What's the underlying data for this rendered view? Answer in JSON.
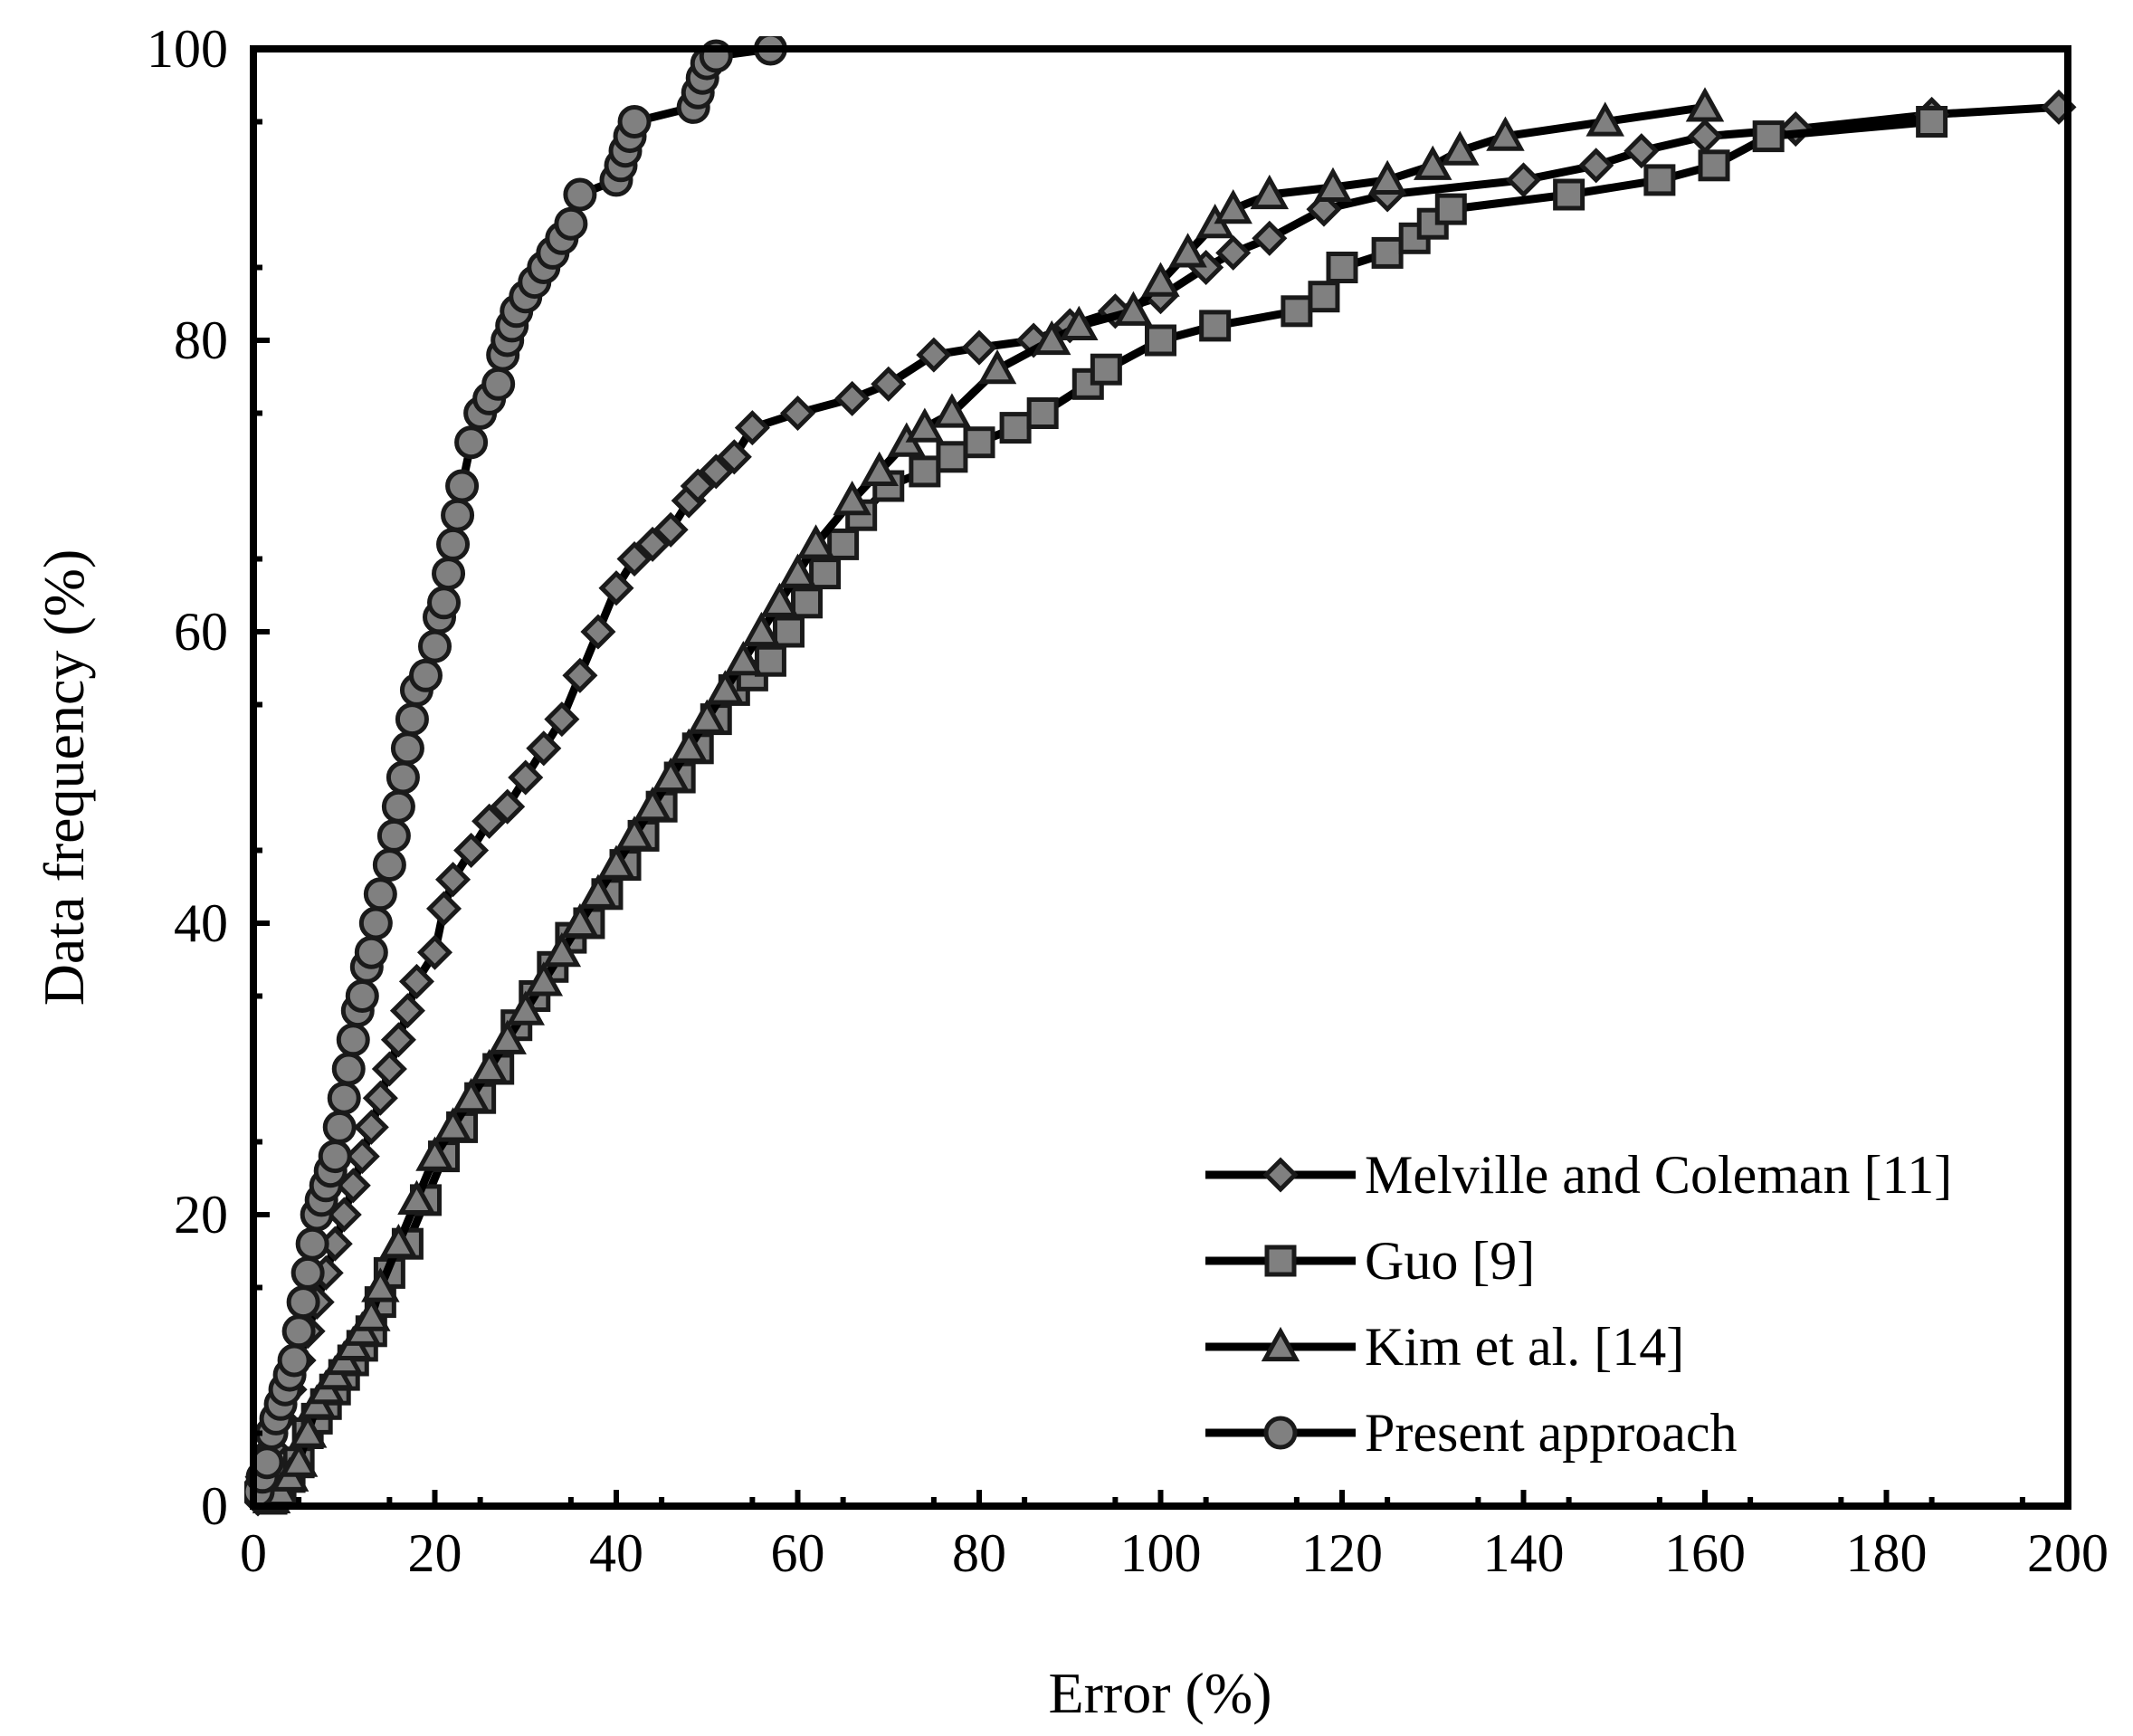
{
  "chart_data": {
    "type": "line",
    "title": "",
    "xlabel": "Error (%)",
    "ylabel": "Data frequency (%)",
    "xlim": [
      0,
      200
    ],
    "ylim": [
      0,
      100
    ],
    "xticks": [
      0,
      20,
      40,
      60,
      80,
      100,
      120,
      140,
      160,
      180,
      200
    ],
    "yticks": [
      0,
      20,
      40,
      60,
      80,
      100
    ],
    "grid": false,
    "legend_position": "bottom-right",
    "colors": {
      "line": "#000000",
      "marker_fill": "#808080",
      "marker_stroke": "#1a1a1a"
    },
    "series": [
      {
        "name": "Melville and Coleman [11]",
        "marker": "diamond",
        "x": [
          0.5,
          1,
          2,
          3,
          4,
          5,
          6,
          7,
          8,
          9,
          10,
          11,
          12,
          13,
          14,
          15,
          16,
          17,
          18,
          20,
          21,
          22,
          24,
          26,
          28,
          30,
          32,
          34,
          36,
          38,
          40,
          42,
          44,
          46,
          48,
          49,
          51,
          53,
          55,
          60,
          66,
          70,
          75,
          80,
          86,
          90,
          95,
          100,
          105,
          108,
          112,
          118,
          125,
          140,
          148,
          153,
          160,
          170,
          185,
          199
        ],
        "y": [
          0.5,
          2,
          4,
          6,
          8,
          10,
          12,
          14,
          16,
          18,
          20,
          22,
          24,
          26,
          28,
          30,
          32,
          34,
          36,
          38,
          41,
          43,
          45,
          47,
          48,
          50,
          52,
          54,
          57,
          60,
          63,
          65,
          66,
          67,
          69,
          70,
          71,
          72,
          74,
          75,
          76,
          77,
          79,
          79.5,
          80,
          81,
          82,
          83,
          85,
          86,
          87,
          89,
          90,
          91,
          92,
          93,
          94,
          94.5,
          95.5,
          96
        ]
      },
      {
        "name": "Guo [9]",
        "marker": "square",
        "x": [
          2,
          3,
          4,
          5,
          6,
          7,
          8,
          9,
          10,
          11,
          12,
          13,
          14,
          15,
          17,
          19,
          21,
          23,
          25,
          27,
          29,
          31,
          33,
          35,
          37,
          39,
          41,
          43,
          45,
          47,
          49,
          51,
          53,
          55,
          57,
          59,
          61,
          63,
          65,
          67,
          70,
          74,
          77,
          80,
          84,
          87,
          92,
          94,
          100,
          106,
          115,
          118,
          120,
          125,
          128,
          130,
          132,
          145,
          155,
          161,
          167,
          185
        ],
        "y": [
          0.5,
          1,
          2,
          3,
          5,
          6,
          7,
          8,
          9,
          10,
          11,
          12,
          14,
          16,
          18,
          21,
          24,
          26,
          28,
          30,
          33,
          35,
          37,
          39,
          40,
          42,
          44,
          46,
          48,
          50,
          52,
          54,
          56,
          57,
          58,
          60,
          62,
          64,
          66,
          68,
          70,
          71,
          72,
          73,
          74,
          75,
          77,
          78,
          80,
          81,
          82,
          83,
          85,
          86,
          87,
          88,
          89,
          90,
          91,
          92,
          94,
          95
        ]
      },
      {
        "name": "Kim et al. [14]",
        "marker": "triangle",
        "x": [
          2,
          3,
          4,
          5,
          6,
          7,
          8,
          9,
          10,
          11,
          12,
          13,
          14,
          16,
          18,
          20,
          22,
          24,
          26,
          28,
          30,
          32,
          34,
          36,
          38,
          40,
          42,
          44,
          46,
          48,
          50,
          52,
          54,
          56,
          58,
          60,
          62,
          66,
          69,
          72,
          74,
          77,
          82,
          88,
          91,
          97,
          100,
          103,
          106,
          108,
          112,
          119,
          125,
          130,
          133,
          138,
          149,
          160
        ],
        "y": [
          0.5,
          1,
          2,
          3,
          5,
          7,
          8,
          9,
          10,
          11,
          12,
          13,
          15,
          18,
          21,
          24,
          26,
          28,
          30,
          32,
          34,
          36,
          38,
          40,
          42,
          44,
          46,
          48,
          50,
          52,
          54,
          56,
          58,
          60,
          62,
          64,
          66,
          69,
          71,
          73,
          74,
          75,
          78,
          80,
          81,
          82,
          84,
          86,
          88,
          89,
          90,
          90.5,
          91,
          92,
          93,
          94,
          95,
          96
        ]
      },
      {
        "name": "Present approach",
        "marker": "circle",
        "x": [
          0.5,
          1,
          1.5,
          2,
          2.5,
          3,
          3.5,
          4,
          4.5,
          5,
          5.5,
          6,
          6.5,
          7,
          7.5,
          8,
          8.5,
          9,
          9.5,
          10,
          10.5,
          11,
          11.5,
          12,
          12.5,
          13,
          13.5,
          14,
          15,
          15.5,
          16,
          16.5,
          17,
          17.5,
          18,
          19,
          20,
          20.5,
          21,
          21.5,
          22,
          22.5,
          23,
          24,
          25,
          26,
          27,
          27.5,
          28,
          28.5,
          29,
          30,
          31,
          32,
          33,
          34,
          35,
          36,
          40,
          40.5,
          41,
          41.5,
          42,
          48.5,
          49,
          49.5,
          50,
          51,
          57
        ],
        "y": [
          1,
          2,
          3,
          5,
          6,
          7,
          8,
          9,
          10,
          12,
          14,
          16,
          18,
          20,
          21,
          22,
          23,
          24,
          26,
          28,
          30,
          32,
          34,
          35,
          37,
          38,
          40,
          42,
          44,
          46,
          48,
          50,
          52,
          54,
          56,
          57,
          59,
          61,
          62,
          64,
          66,
          68,
          70,
          73,
          75,
          76,
          77,
          79,
          80,
          81,
          82,
          83,
          84,
          85,
          86,
          87,
          88,
          90,
          91,
          92,
          93,
          94,
          95,
          96,
          97,
          98,
          99,
          99.5,
          100
        ]
      }
    ]
  }
}
